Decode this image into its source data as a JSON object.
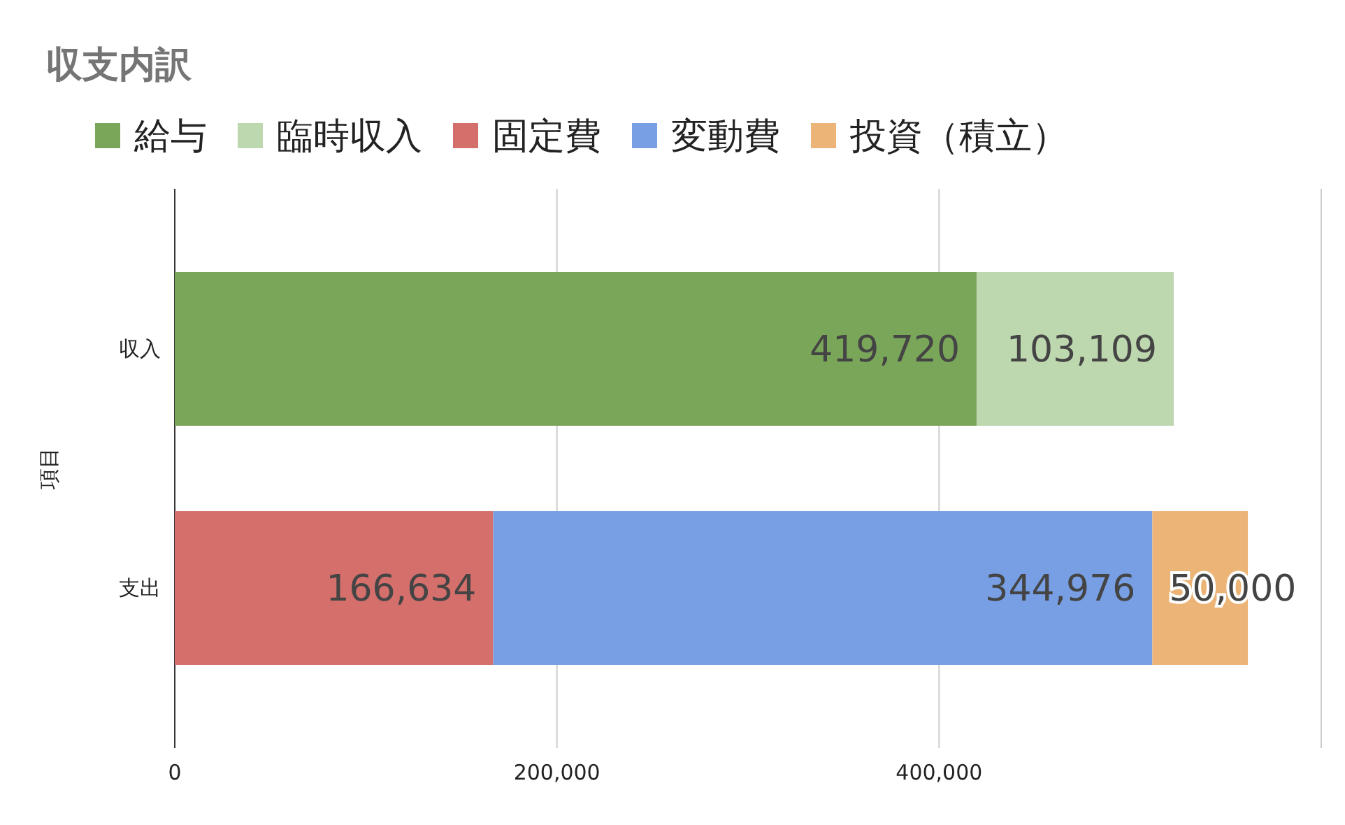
{
  "chart_data": {
    "type": "bar",
    "title": "収支内訳",
    "ylabel": "項目",
    "orientation": "horizontal",
    "stacked": true,
    "categories": [
      "収入",
      "支出"
    ],
    "series": [
      {
        "name": "給与",
        "color": "#7aa65a",
        "values": [
          419720,
          null
        ],
        "value_labels": [
          "419,720",
          null
        ]
      },
      {
        "name": "臨時収入",
        "color": "#bdd7ae",
        "values": [
          103109,
          null
        ],
        "value_labels": [
          "103,109",
          null
        ]
      },
      {
        "name": "固定費",
        "color": "#d46f6b",
        "values": [
          null,
          166634
        ],
        "value_labels": [
          null,
          "166,634"
        ]
      },
      {
        "name": "変動費",
        "color": "#789fe3",
        "values": [
          null,
          344976
        ],
        "value_labels": [
          null,
          "344,976"
        ]
      },
      {
        "name": "投資（積立）",
        "color": "#ecb477",
        "values": [
          null,
          50000
        ],
        "value_labels": [
          null,
          "50,000"
        ]
      }
    ],
    "xlim": [
      0,
      600000
    ],
    "xticks": [
      {
        "value": 0,
        "label": "0"
      },
      {
        "value": 200000,
        "label": "200,000"
      },
      {
        "value": 400000,
        "label": "400,000"
      },
      {
        "value": 600000,
        "label": null
      }
    ],
    "grid": "x",
    "legend": "top"
  }
}
